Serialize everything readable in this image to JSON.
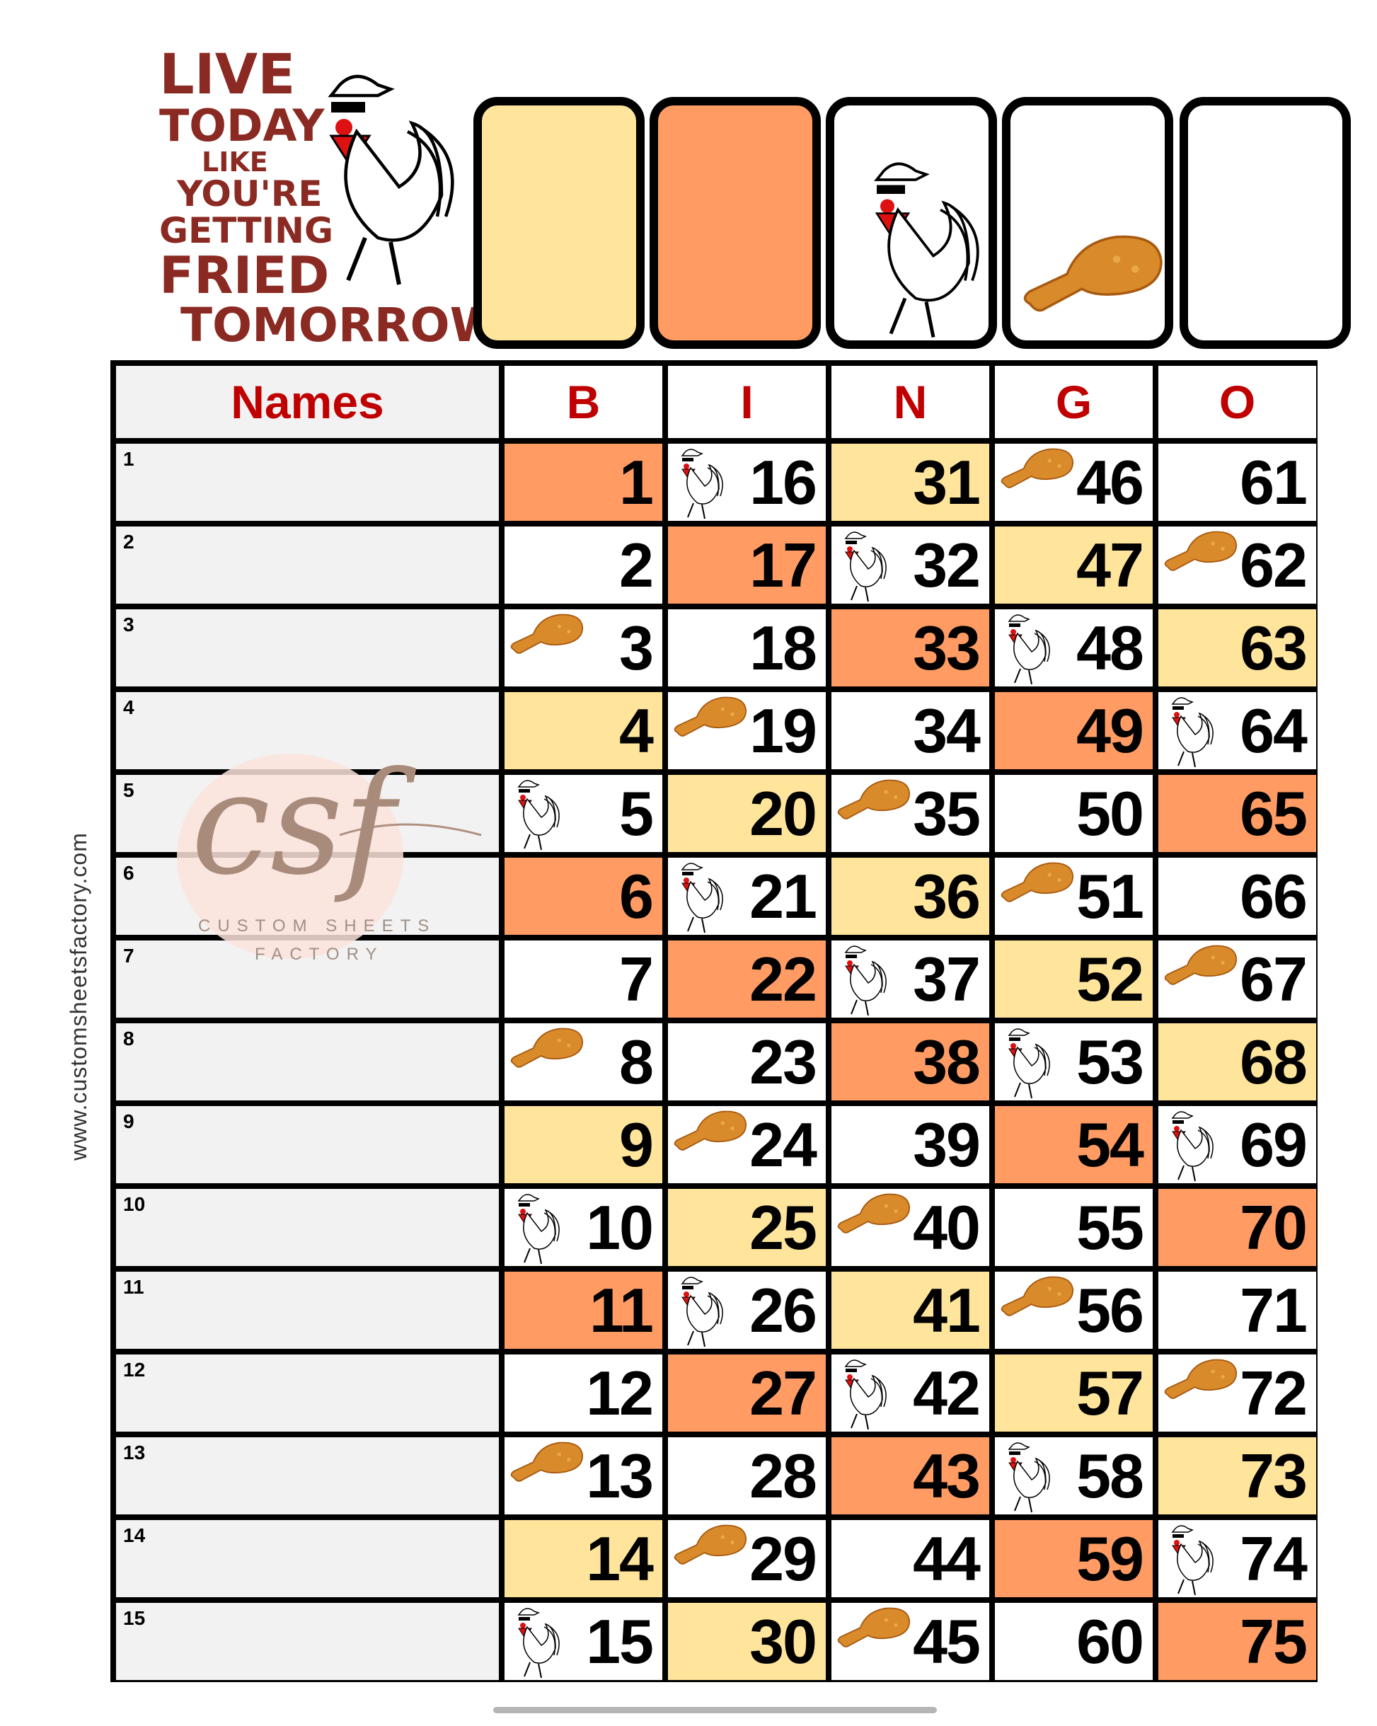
{
  "logo": {
    "lines": [
      "LIVE",
      "TODAY",
      "LIKE",
      "YOU'RE",
      "GETTING",
      "FRIED",
      "TOMORROW"
    ]
  },
  "colors": {
    "orange": "#FF9B63",
    "yellow": "#FFE59C",
    "white": "#FFFFFF",
    "header_red": "#C00000",
    "names_bg": "#F2F2F2"
  },
  "header_boxes": [
    {
      "fill": "yellow",
      "icon": null
    },
    {
      "fill": "orange",
      "icon": null
    },
    {
      "fill": "white",
      "icon": "rooster-icon"
    },
    {
      "fill": "white",
      "icon": "chicken-leg-icon"
    },
    {
      "fill": "white",
      "icon": null
    }
  ],
  "table": {
    "names_header": "Names",
    "columns": [
      "B",
      "I",
      "N",
      "G",
      "O"
    ],
    "row_numbers": [
      "1",
      "2",
      "3",
      "4",
      "5",
      "6",
      "7",
      "8",
      "9",
      "10",
      "11",
      "12",
      "13",
      "14",
      "15"
    ],
    "style_cycle": [
      "orange",
      "white",
      "leg",
      "yellow",
      "rooster"
    ],
    "cells": [
      [
        "1",
        "16",
        "31",
        "46",
        "61"
      ],
      [
        "2",
        "17",
        "32",
        "47",
        "62"
      ],
      [
        "3",
        "18",
        "33",
        "48",
        "63"
      ],
      [
        "4",
        "19",
        "34",
        "49",
        "64"
      ],
      [
        "5",
        "20",
        "35",
        "50",
        "65"
      ],
      [
        "6",
        "21",
        "36",
        "51",
        "66"
      ],
      [
        "7",
        "22",
        "37",
        "52",
        "67"
      ],
      [
        "8",
        "23",
        "38",
        "53",
        "68"
      ],
      [
        "9",
        "24",
        "39",
        "54",
        "69"
      ],
      [
        "10",
        "25",
        "40",
        "55",
        "70"
      ],
      [
        "11",
        "26",
        "41",
        "56",
        "71"
      ],
      [
        "12",
        "27",
        "42",
        "57",
        "72"
      ],
      [
        "13",
        "28",
        "43",
        "58",
        "73"
      ],
      [
        "14",
        "29",
        "44",
        "59",
        "74"
      ],
      [
        "15",
        "30",
        "45",
        "60",
        "75"
      ]
    ]
  },
  "side_text": "www.customsheetsfactory.com",
  "watermark": {
    "mark": "csf",
    "line1": "CUSTOM SHEETS",
    "line2": "FACTORY"
  }
}
